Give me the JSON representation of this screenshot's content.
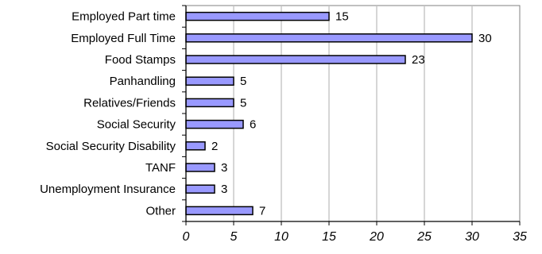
{
  "chart_data": {
    "type": "bar",
    "orientation": "horizontal",
    "categories": [
      "Employed Part time",
      "Employed Full Time",
      "Food Stamps",
      "Panhandling",
      "Relatives/Friends",
      "Social Security",
      "Social Security Disability",
      "TANF",
      "Unemployment Insurance",
      "Other"
    ],
    "values": [
      15,
      30,
      23,
      5,
      5,
      6,
      2,
      3,
      3,
      7
    ],
    "data_labels": [
      "15",
      "30",
      "23",
      "5",
      "5",
      "6",
      "2",
      "3",
      "3",
      "7"
    ],
    "xlim": [
      0,
      35
    ],
    "x_ticks": [
      0,
      5,
      10,
      15,
      20,
      25,
      30,
      35
    ],
    "x_tick_labels": [
      "0",
      "5",
      "10",
      "15",
      "20",
      "25",
      "30",
      "35"
    ],
    "title": "",
    "xlabel": "",
    "ylabel": "",
    "grid": "vertical",
    "legend": "none",
    "colors": {
      "bar_fill": "#9999ff",
      "bar_stroke": "#000000",
      "grid": "#c0c0c0",
      "axis": "#808080"
    }
  }
}
